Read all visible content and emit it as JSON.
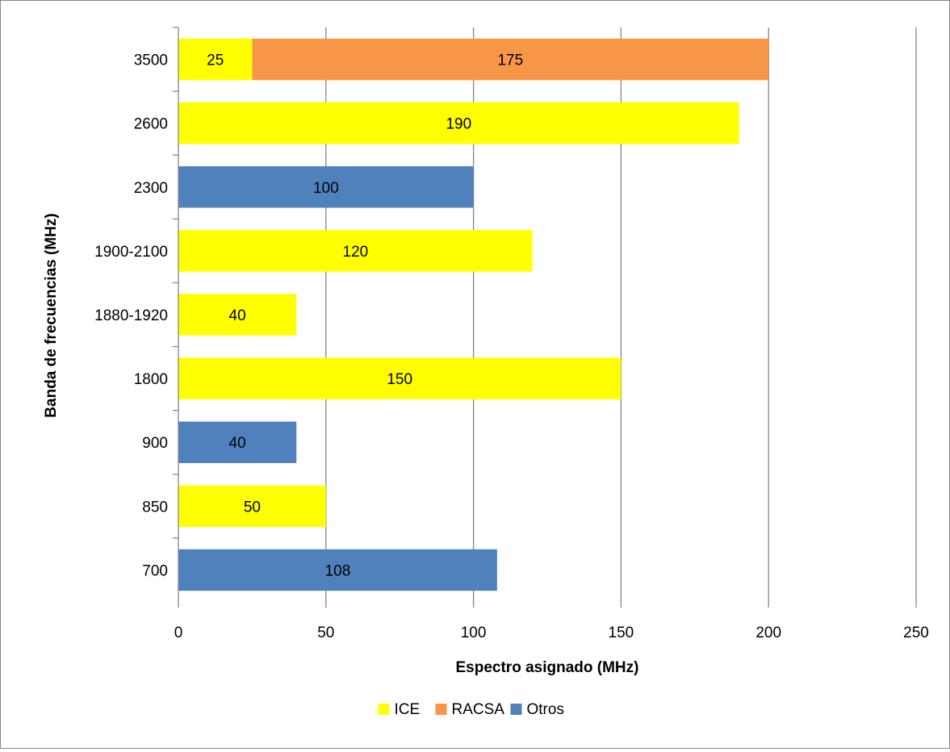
{
  "chart_data": {
    "type": "bar",
    "orientation": "horizontal",
    "stacked": true,
    "xlabel": "Espectro asignado (MHz)",
    "ylabel": "Banda de frecuencias (MHz)",
    "xlim": [
      0,
      250
    ],
    "x_ticks": [
      "0",
      "50",
      "100",
      "150",
      "200",
      "250"
    ],
    "categories": [
      "700",
      "850",
      "900",
      "1800",
      "1880-1920",
      "1900-2100",
      "2300",
      "2600",
      "3500"
    ],
    "series": [
      {
        "name": "ICE",
        "color": "#FFFF00",
        "values": [
          0,
          50,
          0,
          150,
          40,
          120,
          0,
          190,
          25
        ]
      },
      {
        "name": "RACSA",
        "color": "#F79646",
        "values": [
          0,
          0,
          0,
          0,
          0,
          0,
          0,
          0,
          175
        ]
      },
      {
        "name": "Otros",
        "color": "#4F81BD",
        "values": [
          108,
          0,
          40,
          0,
          0,
          0,
          100,
          0,
          0
        ]
      }
    ],
    "grid": "vertical",
    "legend_position": "bottom"
  }
}
